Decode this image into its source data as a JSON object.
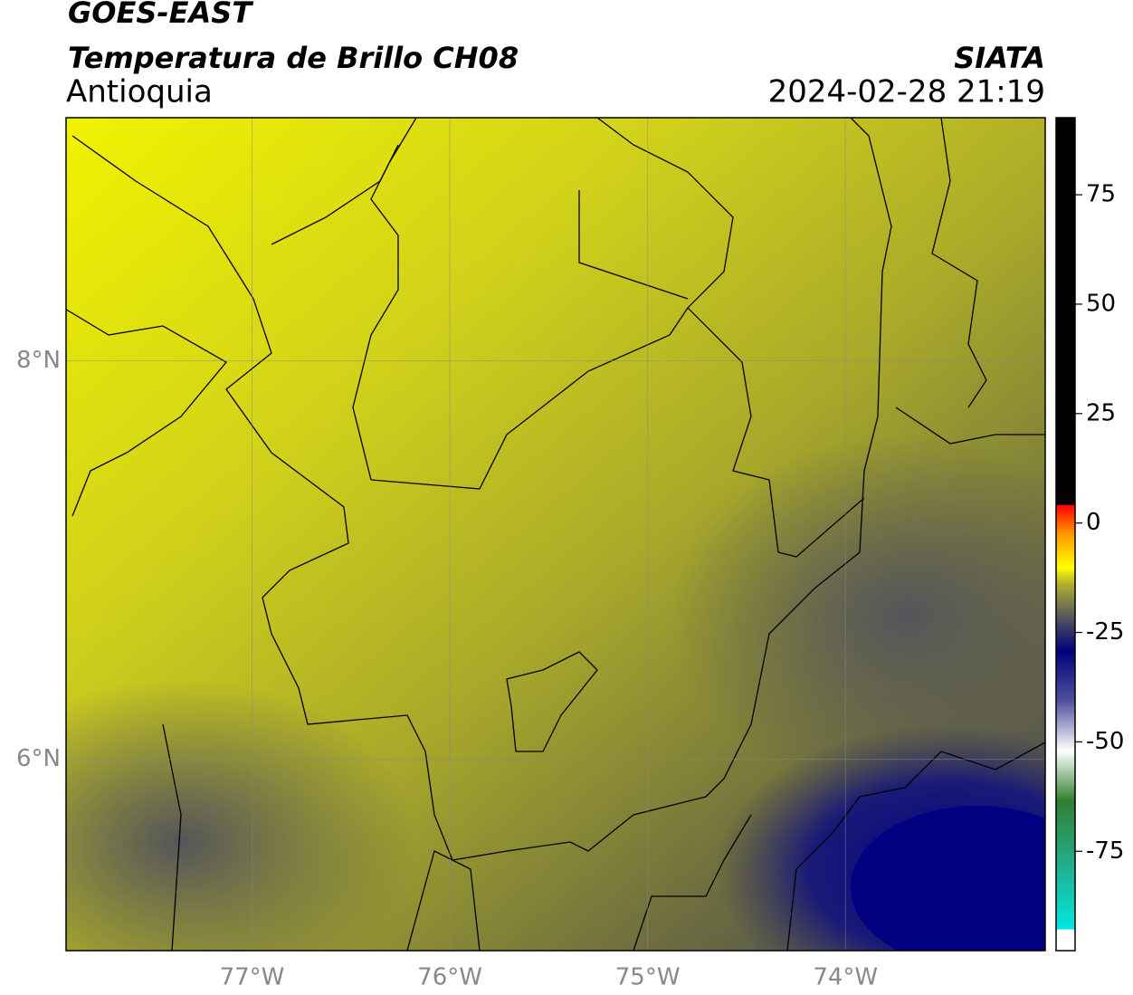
{
  "header": {
    "satellite": "GOES-EAST",
    "product": "Temperatura de Brillo CH08",
    "region": "Antioquia",
    "source": "SIATA",
    "datetime": "2024-02-28 21:19"
  },
  "map": {
    "xlim": [
      -77.94,
      -72.99
    ],
    "ylim": [
      5.04,
      9.22
    ],
    "xticks": [
      {
        "value": -77,
        "label": "77°W"
      },
      {
        "value": -76,
        "label": "76°W"
      },
      {
        "value": -75,
        "label": "75°W"
      },
      {
        "value": -74,
        "label": "74°W"
      }
    ],
    "yticks": [
      {
        "value": 6,
        "label": "6°N"
      },
      {
        "value": 8,
        "label": "8°N"
      }
    ],
    "grid": true
  },
  "colorbar": {
    "lim": [
      -97.7,
      92.6
    ],
    "ticks": [
      75,
      50,
      25,
      0,
      -25,
      -50,
      -75
    ]
  }
}
